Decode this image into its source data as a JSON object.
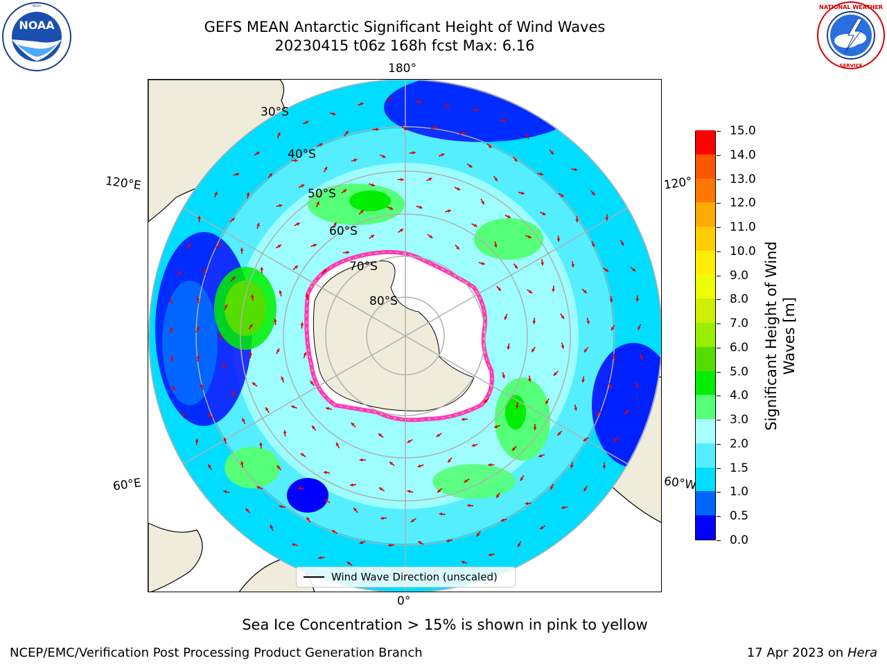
{
  "header": {
    "title_line1": "GEFS MEAN Antarctic Significant Height of Wind Waves",
    "title_line2": "20230415 t06z 168h fcst   Max: 6.16"
  },
  "logos": {
    "left": {
      "name": "noaa-logo",
      "text": "NOAA",
      "ring_text": "NATIONAL OCEANIC AND ATMOSPHERIC ADMINISTRATION · U.S. DEPARTMENT OF COMMERCE"
    },
    "right": {
      "name": "nws-logo",
      "ring_text": "NATIONAL WEATHER SERVICE"
    }
  },
  "map": {
    "projection": "south-polar-stereographic",
    "longitude_labels": {
      "top": "180°",
      "bottom": "0°",
      "upper_left": "120°E",
      "upper_right": "120°W",
      "lower_left": "60°E",
      "lower_right": "60°W"
    },
    "latitude_labels": [
      "30°S",
      "40°S",
      "50°S",
      "60°S",
      "70°S",
      "80°S"
    ],
    "colors": {
      "land": "#efecdc",
      "coast": "#000000",
      "grid": "#b0b0b0",
      "ice_pink": "#ff33cc",
      "ice_yellow": "#ffcc00",
      "arrow": "#e00000"
    },
    "legend_label": "Wind Wave Direction (unscaled)"
  },
  "colorbar": {
    "label": "Significant Height of Wind Waves [m]",
    "ticks": [
      "0.0",
      "0.5",
      "1.0",
      "1.5",
      "2.0",
      "3.0",
      "4.0",
      "5.0",
      "6.0",
      "7.0",
      "8.0",
      "9.0",
      "10.0",
      "11.0",
      "12.0",
      "13.0",
      "14.0",
      "15.0"
    ],
    "colors": [
      "#0000ff",
      "#0066ff",
      "#00ddff",
      "#55eeff",
      "#aaffff",
      "#55ff77",
      "#00ee00",
      "#55dd00",
      "#99ee00",
      "#ccf000",
      "#eeff00",
      "#ffee00",
      "#ffcc00",
      "#ffaa00",
      "#ff7700",
      "#ff5500",
      "#ff0000"
    ]
  },
  "notes": {
    "sea_ice": "Sea Ice Concentration > 15% is shown in pink to yellow"
  },
  "footer": {
    "left": "NCEP/EMC/Verification Post Processing Product Generation Branch",
    "right_prefix": "17 Apr 2023 on ",
    "right_host": "Hera"
  }
}
